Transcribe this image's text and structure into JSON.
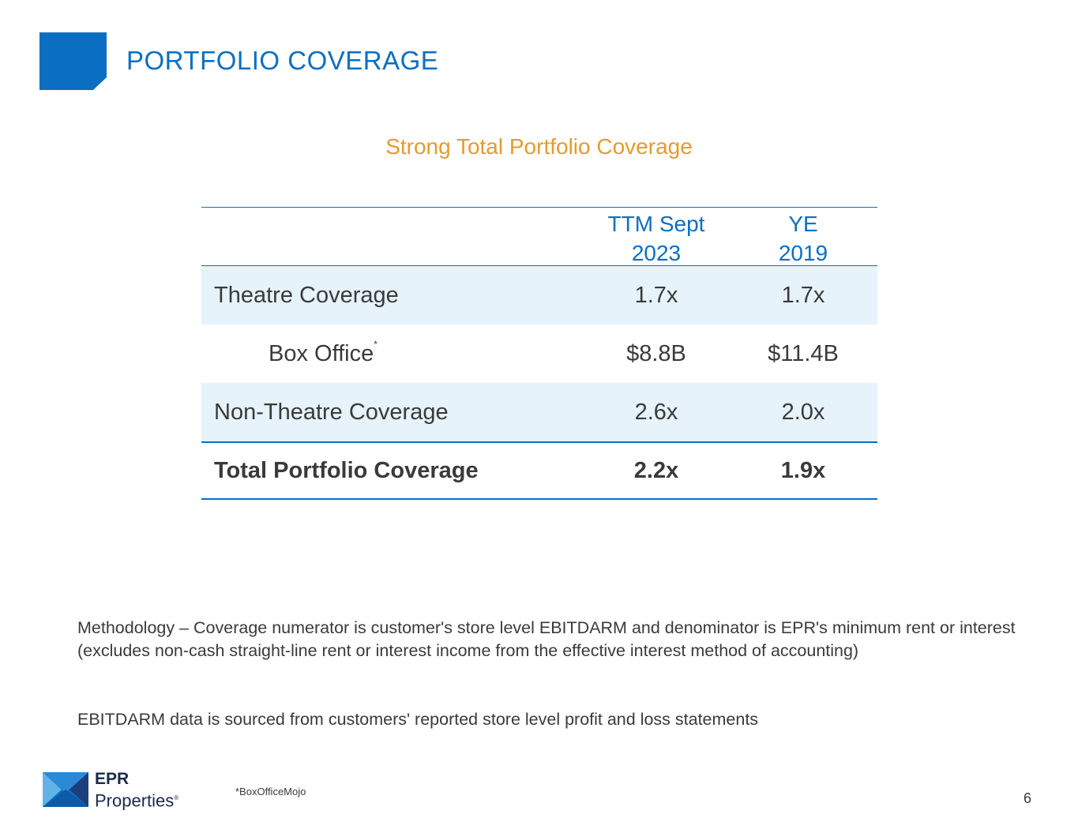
{
  "header": {
    "title": "PORTFOLIO COVERAGE"
  },
  "subtitle": "Strong Total Portfolio Coverage",
  "table": {
    "columns": [
      {
        "line1": "TTM Sept",
        "line2": "2023"
      },
      {
        "line1": "YE",
        "line2": "2019"
      }
    ],
    "rows": [
      {
        "label": "Theatre Coverage",
        "values": [
          "1.7x",
          "1.7x"
        ]
      },
      {
        "label": "Box Office",
        "footnote_mark": "*",
        "values": [
          "$8.8B",
          "$11.4B"
        ]
      },
      {
        "label": "Non-Theatre Coverage",
        "values": [
          "2.6x",
          "2.0x"
        ]
      },
      {
        "label": "Total Portfolio Coverage",
        "values": [
          "2.2x",
          "1.9x"
        ]
      }
    ]
  },
  "notes": {
    "methodology": "Methodology – Coverage numerator is customer's store level EBITDARM and denominator is EPR's minimum rent or interest (excludes non-cash straight-line rent or interest income from the effective interest method of accounting)",
    "source_note": "EBITDARM data is sourced from customers' reported store level profit and loss statements"
  },
  "footer": {
    "logo_line1": "EPR",
    "logo_line2": "Properties",
    "logo_mark": "®",
    "source": "*BoxOfficeMojo",
    "page_number": "6"
  },
  "colors": {
    "brand_blue": "#0a6fc2",
    "accent_orange": "#e69a2e",
    "row_shade": "#e6f3fb"
  }
}
